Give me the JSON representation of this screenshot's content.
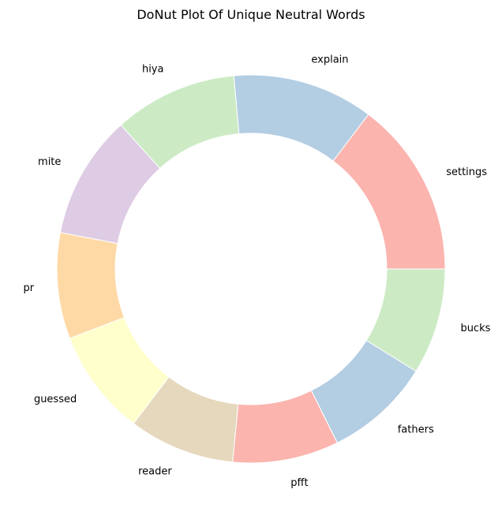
{
  "chart_data": {
    "type": "pie",
    "variant": "donut",
    "title": "DoNut Plot Of Unique Neutral Words",
    "categories": [
      "settings",
      "explain",
      "hiya",
      "mite",
      "pr",
      "guessed",
      "reader",
      "pfft",
      "fathers",
      "bucks"
    ],
    "values": [
      16.1,
      12.9,
      11.3,
      11.3,
      9.7,
      9.7,
      9.7,
      9.7,
      9.7,
      9.7
    ],
    "colors": [
      "#fbb4ae",
      "#b3cde3",
      "#ccebc5",
      "#decbe4",
      "#fed9a6",
      "#ffffcc",
      "#e5d8bd",
      "#fbb4ae",
      "#b3cde3",
      "#ccebc5"
    ],
    "start": "right, counter-clockwise",
    "legend": "none"
  }
}
